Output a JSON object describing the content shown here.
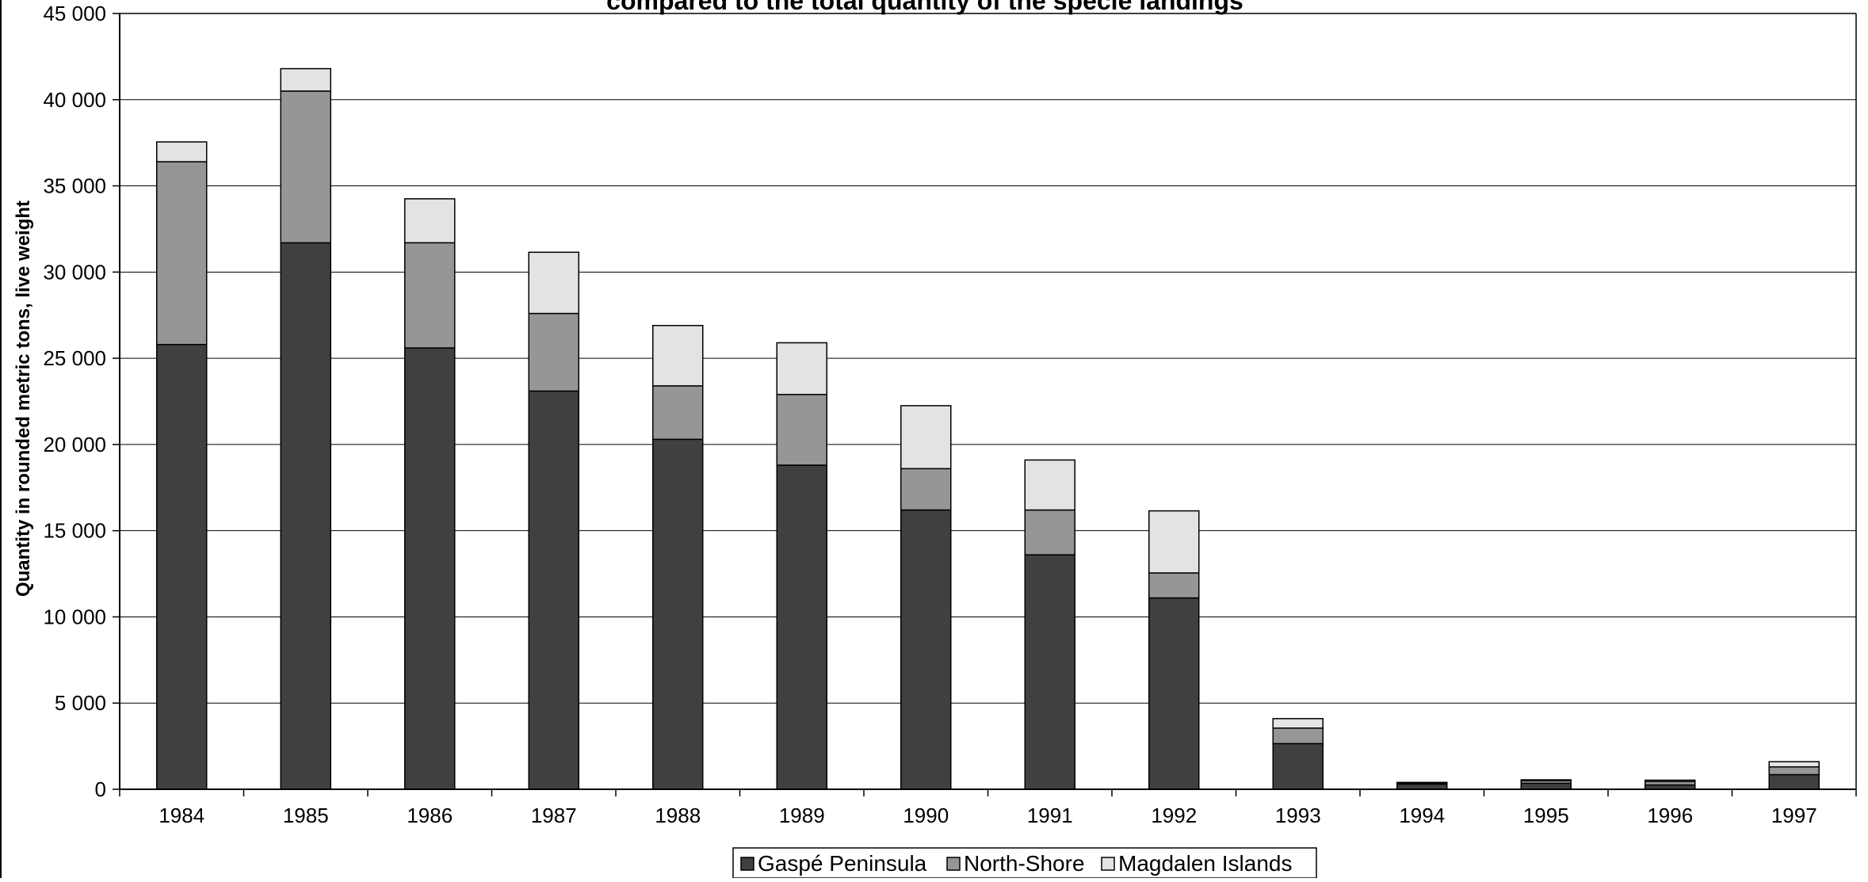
{
  "chart_data": {
    "type": "bar",
    "stacked": true,
    "title": "compared to the total quantity of the specie landings",
    "xlabel": "",
    "ylabel": "Quantity in rounded metric tons, live weight",
    "ylim": [
      0,
      45000
    ],
    "yticks": [
      "0",
      "5 000",
      "10 000",
      "15 000",
      "20 000",
      "25 000",
      "30 000",
      "35 000",
      "40 000",
      "45 000"
    ],
    "categories": [
      "1984",
      "1985",
      "1986",
      "1987",
      "1988",
      "1989",
      "1990",
      "1991",
      "1992",
      "1993",
      "1994",
      "1995",
      "1996",
      "1997"
    ],
    "series": [
      {
        "name": "Gaspé Peninsula",
        "color": "#404040",
        "values": [
          25800,
          31700,
          25600,
          23100,
          20300,
          18800,
          16200,
          13600,
          11100,
          2650,
          300,
          350,
          250,
          850
        ]
      },
      {
        "name": "North-Shore",
        "color": "#969696",
        "values": [
          10600,
          8800,
          6100,
          4500,
          3100,
          4100,
          2400,
          2600,
          1450,
          900,
          50,
          150,
          200,
          450
        ]
      },
      {
        "name": "Magdalen Islands",
        "color": "#e3e3e3",
        "values": [
          1150,
          1300,
          2550,
          3550,
          3500,
          3000,
          3650,
          2900,
          3600,
          550,
          50,
          50,
          80,
          300
        ]
      }
    ],
    "grid": true,
    "legend_position": "bottom"
  }
}
